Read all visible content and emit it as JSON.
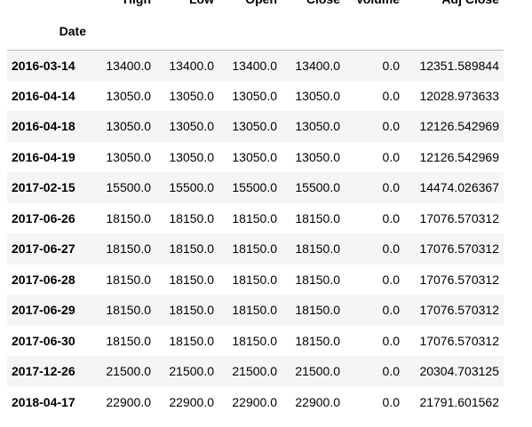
{
  "table": {
    "columns": [
      "High",
      "Low",
      "Open",
      "Close",
      "Volume",
      "Adj Close"
    ],
    "index_name": "Date",
    "rows": [
      {
        "date": "2016-03-14",
        "high": "13400.0",
        "low": "13400.0",
        "open": "13400.0",
        "close": "13400.0",
        "volume": "0.0",
        "adj_close": "12351.589844"
      },
      {
        "date": "2016-04-14",
        "high": "13050.0",
        "low": "13050.0",
        "open": "13050.0",
        "close": "13050.0",
        "volume": "0.0",
        "adj_close": "12028.973633"
      },
      {
        "date": "2016-04-18",
        "high": "13050.0",
        "low": "13050.0",
        "open": "13050.0",
        "close": "13050.0",
        "volume": "0.0",
        "adj_close": "12126.542969"
      },
      {
        "date": "2016-04-19",
        "high": "13050.0",
        "low": "13050.0",
        "open": "13050.0",
        "close": "13050.0",
        "volume": "0.0",
        "adj_close": "12126.542969"
      },
      {
        "date": "2017-02-15",
        "high": "15500.0",
        "low": "15500.0",
        "open": "15500.0",
        "close": "15500.0",
        "volume": "0.0",
        "adj_close": "14474.026367"
      },
      {
        "date": "2017-06-26",
        "high": "18150.0",
        "low": "18150.0",
        "open": "18150.0",
        "close": "18150.0",
        "volume": "0.0",
        "adj_close": "17076.570312"
      },
      {
        "date": "2017-06-27",
        "high": "18150.0",
        "low": "18150.0",
        "open": "18150.0",
        "close": "18150.0",
        "volume": "0.0",
        "adj_close": "17076.570312"
      },
      {
        "date": "2017-06-28",
        "high": "18150.0",
        "low": "18150.0",
        "open": "18150.0",
        "close": "18150.0",
        "volume": "0.0",
        "adj_close": "17076.570312"
      },
      {
        "date": "2017-06-29",
        "high": "18150.0",
        "low": "18150.0",
        "open": "18150.0",
        "close": "18150.0",
        "volume": "0.0",
        "adj_close": "17076.570312"
      },
      {
        "date": "2017-06-30",
        "high": "18150.0",
        "low": "18150.0",
        "open": "18150.0",
        "close": "18150.0",
        "volume": "0.0",
        "adj_close": "17076.570312"
      },
      {
        "date": "2017-12-26",
        "high": "21500.0",
        "low": "21500.0",
        "open": "21500.0",
        "close": "21500.0",
        "volume": "0.0",
        "adj_close": "20304.703125"
      },
      {
        "date": "2018-04-17",
        "high": "22900.0",
        "low": "22900.0",
        "open": "22900.0",
        "close": "22900.0",
        "volume": "0.0",
        "adj_close": "21791.601562"
      }
    ]
  }
}
